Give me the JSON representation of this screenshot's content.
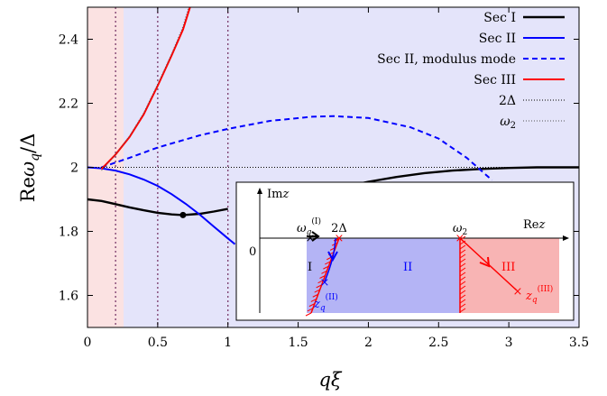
{
  "chart_data": {
    "type": "line",
    "xlabel": "qξ",
    "ylabel": "Reω_q/Δ",
    "xlim": [
      0,
      3.5
    ],
    "ylim": [
      1.5,
      2.5
    ],
    "xticks": [
      "0",
      "0.5",
      "1",
      "1.5",
      "2",
      "2.5",
      "3",
      "3.5"
    ],
    "yticks": [
      "1.6",
      "1.8",
      "2",
      "2.2",
      "2.4"
    ],
    "legend": {
      "placement": "top-right"
    },
    "regions": [
      {
        "name": "Sec III region",
        "x": [
          0,
          0.31
        ],
        "color": "#fbe2e2"
      },
      {
        "name": "Sec II region",
        "x": [
          0.31,
          3.5
        ],
        "color": "#e4e4fa"
      }
    ],
    "vlines": [
      0.2,
      0.5,
      1.0
    ],
    "series": [
      {
        "name": "Sec I",
        "color": "#000000",
        "style": "solid",
        "points": [
          [
            0,
            1.9
          ],
          [
            0.1,
            1.895
          ],
          [
            0.2,
            1.885
          ],
          [
            0.3,
            1.875
          ],
          [
            0.4,
            1.866
          ],
          [
            0.5,
            1.858
          ],
          [
            0.6,
            1.853
          ],
          [
            0.68,
            1.851
          ],
          [
            0.8,
            1.855
          ],
          [
            0.9,
            1.862
          ],
          [
            1.0,
            1.87
          ]
        ],
        "points2": [
          [
            1.92,
            1.948
          ],
          [
            2.0,
            1.955
          ],
          [
            2.2,
            1.97
          ],
          [
            2.4,
            1.982
          ],
          [
            2.6,
            1.99
          ],
          [
            2.8,
            1.995
          ],
          [
            3.0,
            1.998
          ],
          [
            3.2,
            2.0
          ],
          [
            3.5,
            2.0
          ]
        ],
        "marker": [
          0.68,
          1.851
        ]
      },
      {
        "name": "Sec II",
        "color": "#0000ff",
        "style": "solid",
        "points": [
          [
            0,
            2.0
          ],
          [
            0.1,
            1.997
          ],
          [
            0.2,
            1.99
          ],
          [
            0.3,
            1.978
          ],
          [
            0.4,
            1.962
          ],
          [
            0.5,
            1.942
          ],
          [
            0.6,
            1.916
          ],
          [
            0.7,
            1.886
          ],
          [
            0.8,
            1.852
          ],
          [
            0.9,
            1.815
          ],
          [
            1.0,
            1.778
          ],
          [
            1.05,
            1.76
          ]
        ]
      },
      {
        "name": "Sec II, modulus mode",
        "color": "#0000ff",
        "style": "dashed",
        "points": [
          [
            0.1,
            2.0
          ],
          [
            0.3,
            2.03
          ],
          [
            0.5,
            2.062
          ],
          [
            0.8,
            2.1
          ],
          [
            1.0,
            2.12
          ],
          [
            1.3,
            2.145
          ],
          [
            1.6,
            2.158
          ],
          [
            1.75,
            2.16
          ],
          [
            2.0,
            2.154
          ],
          [
            2.3,
            2.125
          ],
          [
            2.5,
            2.09
          ],
          [
            2.7,
            2.03
          ],
          [
            2.88,
            1.96
          ]
        ]
      },
      {
        "name": "Sec III",
        "color": "#ff0000",
        "style": "solid",
        "points": [
          [
            0.1,
            1.995
          ],
          [
            0.2,
            2.04
          ],
          [
            0.3,
            2.095
          ],
          [
            0.4,
            2.165
          ],
          [
            0.5,
            2.255
          ],
          [
            0.6,
            2.35
          ],
          [
            0.68,
            2.43
          ],
          [
            0.73,
            2.5
          ]
        ]
      },
      {
        "name": "2Δ",
        "color": "#000000",
        "style": "dotted",
        "points": [
          [
            0,
            2.0
          ],
          [
            3.5,
            2.0
          ]
        ]
      },
      {
        "name": "ω_2",
        "color": "#555555",
        "style": "dotted",
        "points": [
          [
            0.1,
            1.99
          ],
          [
            0.2,
            2.04
          ],
          [
            0.3,
            2.098
          ],
          [
            0.4,
            2.17
          ],
          [
            0.5,
            2.26
          ],
          [
            0.6,
            2.355
          ],
          [
            0.68,
            2.44
          ],
          [
            0.72,
            2.5
          ]
        ]
      }
    ],
    "legend_labels": [
      "Sec I",
      "Sec II",
      "Sec II, modulus mode",
      "Sec III",
      "2Δ",
      "ω2"
    ]
  },
  "inset": {
    "labels": {
      "imz": "Imz",
      "rez": "Rez",
      "zero": "0",
      "two_delta": "2Δ",
      "omega2": "ω2",
      "region_I": "I",
      "region_II": "II",
      "region_III": "III",
      "omega_q": "ωq",
      "omega_q_sup": "(I)",
      "z_q": "zq",
      "z_q_II_sup": "(II)",
      "z_q_III_sup": "(III)"
    },
    "colors": {
      "region_II": "#b4b4f5",
      "region_III": "#f8b4b4",
      "contour": "#000000",
      "red": "#ff0000",
      "blue": "#0000ff"
    }
  }
}
